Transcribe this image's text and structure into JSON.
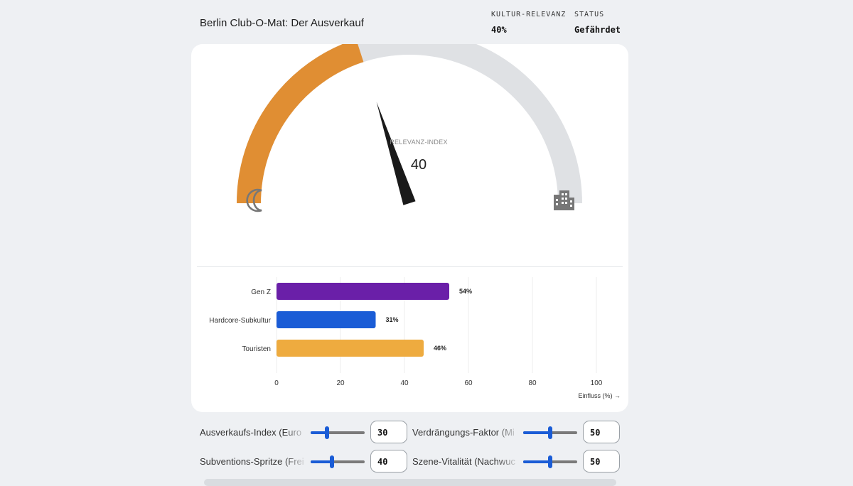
{
  "header": {
    "title": "Berlin Club-O-Mat: Der Ausverkauf",
    "stats": [
      {
        "label": "KULTUR-RELEVANZ",
        "value": "40%"
      },
      {
        "label": "STATUS",
        "value": "Gefährdet"
      }
    ]
  },
  "gauge": {
    "label": "RELEVANZ-INDEX",
    "value": "40",
    "fraction": 0.4,
    "left_icon": "moon-icon",
    "right_icon": "building-icon",
    "colors": {
      "active": "#e08e33",
      "track": "#dfe1e4",
      "needle": "#1a1a1a"
    }
  },
  "chart_data": {
    "type": "bar",
    "orientation": "horizontal",
    "categories": [
      "Gen Z",
      "Hardcore-Subkultur",
      "Touristen"
    ],
    "values": [
      54,
      31,
      46
    ],
    "value_labels": [
      "54%",
      "31%",
      "46%"
    ],
    "colors": [
      "#6a1fa8",
      "#1a5cd6",
      "#eeab3f"
    ],
    "xlim": [
      0,
      100
    ],
    "xticks": [
      "0",
      "20",
      "40",
      "60",
      "80",
      "100"
    ],
    "xlabel": "Einfluss (%) →",
    "grid": true
  },
  "controls": [
    {
      "label": "Ausverkaufs-Index (Euro",
      "value": "30",
      "fraction": 0.3
    },
    {
      "label": "Verdrängungs-Faktor (Mi",
      "value": "50",
      "fraction": 0.5
    },
    {
      "label": "Subventions-Spritze (Frei",
      "value": "40",
      "fraction": 0.4
    },
    {
      "label": "Szene-Vitalität (Nachwuc",
      "value": "50",
      "fraction": 0.5
    }
  ]
}
